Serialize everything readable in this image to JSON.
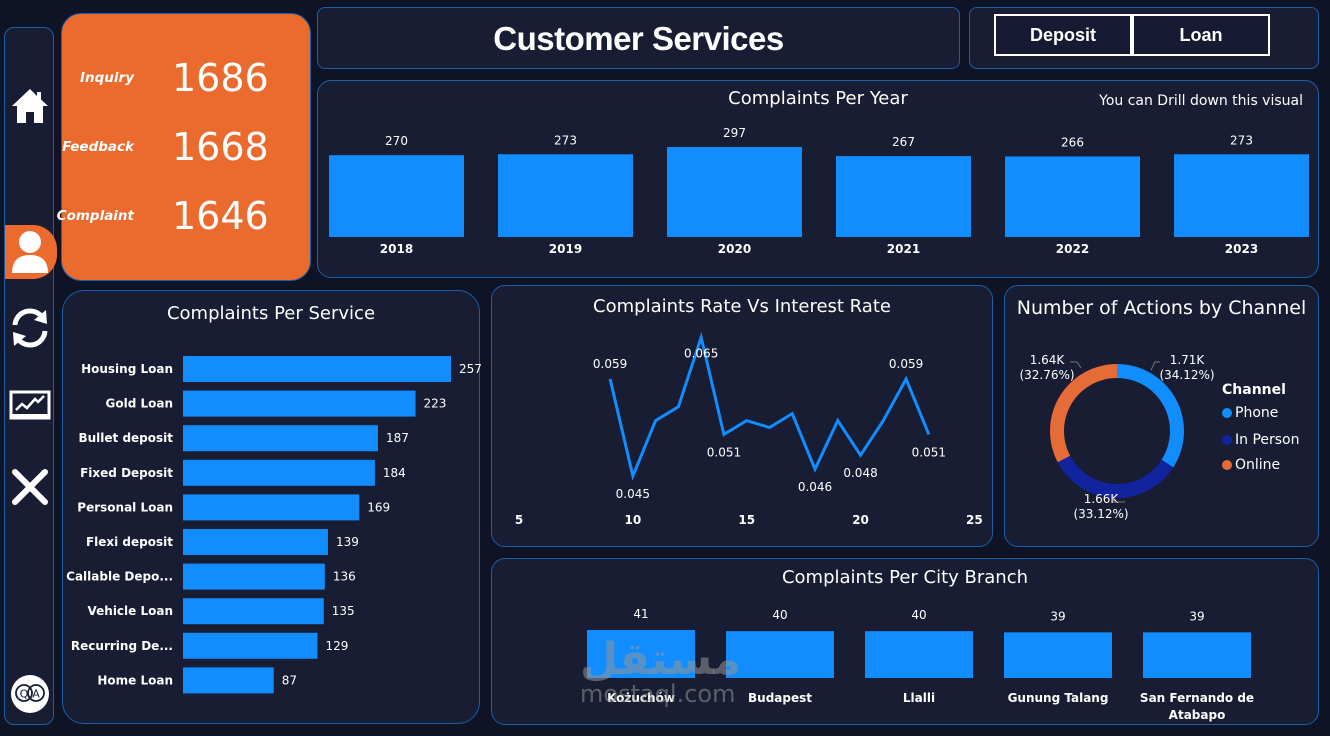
{
  "sidebar": {
    "items": [
      {
        "name": "home",
        "icon": "home-icon"
      },
      {
        "name": "customer-services",
        "icon": "user-icon",
        "active": true
      },
      {
        "name": "refresh",
        "icon": "refresh-icon"
      },
      {
        "name": "analytics",
        "icon": "chart-monitor-icon"
      },
      {
        "name": "close",
        "icon": "close-icon"
      },
      {
        "name": "qa",
        "icon": "qa-icon",
        "label_q": "Q",
        "label_a": "A"
      }
    ],
    "accent": "#EA6B2D"
  },
  "kpis": [
    {
      "label": "Inquiry",
      "value": "1686"
    },
    {
      "label": "Feedback",
      "value": "1668"
    },
    {
      "label": "Complaint",
      "value": "1646"
    }
  ],
  "header": {
    "title": "Customer Services",
    "buttons": [
      {
        "label": "Deposit"
      },
      {
        "label": "Loan"
      }
    ]
  },
  "colors": {
    "bar": "#118DFF",
    "phone": "#118DFF",
    "in_person": "#12239E",
    "online": "#E66C37",
    "panel_bg": "#181D33",
    "panel_border": "#1B5FA8",
    "page_bg": "#0E1326"
  },
  "watermark": {
    "arabic": "مستقل",
    "latin": "mostaql.com"
  },
  "chart_data": [
    {
      "id": "per_year",
      "type": "bar",
      "title": "Complaints Per Year",
      "note": "You can Drill down this visual",
      "categories": [
        "2018",
        "2019",
        "2020",
        "2021",
        "2022",
        "2023"
      ],
      "values": [
        270,
        273,
        297,
        267,
        266,
        273
      ],
      "xlabel": "",
      "ylabel": "",
      "ylim": [
        0,
        297
      ],
      "grid": false
    },
    {
      "id": "per_service",
      "type": "bar",
      "orientation": "horizontal",
      "title": "Complaints Per Service",
      "categories": [
        "Housing Loan",
        "Gold Loan",
        "Bullet deposit",
        "Fixed Deposit",
        "Personal Loan",
        "Flexi deposit",
        "Callable Depo...",
        "Vehicle Loan",
        "Recurring De...",
        "Home Loan"
      ],
      "values": [
        257,
        223,
        187,
        184,
        169,
        139,
        136,
        135,
        129,
        87
      ],
      "xlim": [
        0,
        257
      ],
      "grid": false
    },
    {
      "id": "rate_vs_interest",
      "type": "line",
      "title": "Complaints Rate Vs Interest Rate",
      "x": [
        9,
        10,
        11,
        12,
        13,
        14,
        15,
        16,
        17,
        18,
        19,
        20,
        21,
        22,
        23
      ],
      "y": [
        0.059,
        0.045,
        0.053,
        0.055,
        0.065,
        0.051,
        0.053,
        0.052,
        0.054,
        0.046,
        0.053,
        0.048,
        0.053,
        0.059,
        0.051
      ],
      "labeled_points": [
        {
          "x": 9,
          "label": "0.059",
          "pos": "above"
        },
        {
          "x": 10,
          "label": "0.045",
          "pos": "below"
        },
        {
          "x": 13,
          "label": "0.065",
          "pos": "below"
        },
        {
          "x": 14,
          "label": "0.051",
          "pos": "below"
        },
        {
          "x": 18,
          "label": "0.046",
          "pos": "below"
        },
        {
          "x": 20,
          "label": "0.048",
          "pos": "below"
        },
        {
          "x": 22,
          "label": "0.059",
          "pos": "above"
        },
        {
          "x": 23,
          "label": "0.051",
          "pos": "below"
        }
      ],
      "xticks": [
        "5",
        "10",
        "15",
        "20",
        "25"
      ],
      "xlim": [
        5,
        25
      ],
      "ylim": [
        0.045,
        0.065
      ],
      "grid": false
    },
    {
      "id": "actions_by_channel",
      "type": "pie",
      "donut": true,
      "title": "Number of Actions by Channel",
      "legend_title": "Channel",
      "legend_position": "right",
      "slices": [
        {
          "name": "Phone",
          "value": 1.71,
          "label": "1.71K",
          "pct": "(34.12%)",
          "percent": 34.12
        },
        {
          "name": "In Person",
          "value": 1.66,
          "label": "1.66K",
          "pct": "(33.12%)",
          "percent": 33.12
        },
        {
          "name": "Online",
          "value": 1.64,
          "label": "1.64K",
          "pct": "(32.76%)",
          "percent": 32.76
        }
      ],
      "unit": "K"
    },
    {
      "id": "per_city",
      "type": "bar",
      "title": "Complaints Per City Branch",
      "categories": [
        "Kożuchów",
        "Budapest",
        "Llalli",
        "Gunung Talang",
        "San Fernando de Atabapo"
      ],
      "category_lines": [
        [
          "Kożuchów"
        ],
        [
          "Budapest"
        ],
        [
          "Llalli"
        ],
        [
          "Gunung Talang"
        ],
        [
          "San Fernando de",
          "Atabapo"
        ]
      ],
      "values": [
        41,
        40,
        40,
        39,
        39
      ],
      "ylim": [
        0,
        41
      ],
      "grid": false
    }
  ]
}
